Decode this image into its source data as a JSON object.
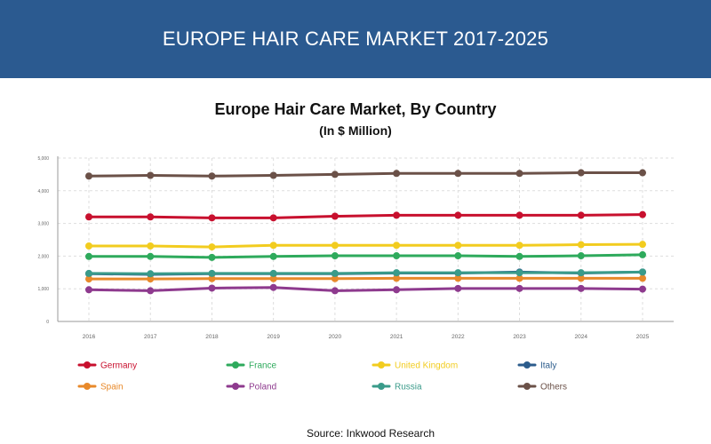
{
  "banner": {
    "title": "EUROPE HAIR CARE MARKET 2017-2025"
  },
  "source": "Source: Inkwood Research",
  "chart_data": {
    "type": "line",
    "title": "Europe Hair Care Market, By Country",
    "subtitle": "(In $ Million)",
    "xlabel": "",
    "ylabel": "",
    "ylim": [
      0,
      5000
    ],
    "yticks": [
      "0",
      "1,000",
      "2,000",
      "3,000",
      "4,000",
      "5,000"
    ],
    "categories": [
      "2016",
      "2017",
      "2018",
      "2019",
      "2020",
      "2021",
      "2022",
      "2023",
      "2024",
      "2025"
    ],
    "grid": true,
    "legend": "bottom",
    "series": [
      {
        "name": "Germany",
        "color": "#c8102e",
        "values": [
          3200,
          3200,
          3170,
          3170,
          3220,
          3250,
          3250,
          3250,
          3250,
          3270
        ]
      },
      {
        "name": "France",
        "color": "#2eaa5c",
        "values": [
          1990,
          1990,
          1960,
          1990,
          2010,
          2010,
          2010,
          1990,
          2010,
          2040
        ]
      },
      {
        "name": "United Kingdom",
        "color": "#f2cc1f",
        "values": [
          2310,
          2310,
          2280,
          2330,
          2330,
          2330,
          2330,
          2330,
          2350,
          2360
        ]
      },
      {
        "name": "Italy",
        "color": "#2c5c8c",
        "values": [
          1460,
          1440,
          1460,
          1460,
          1460,
          1480,
          1480,
          1510,
          1480,
          1510
        ]
      },
      {
        "name": "Spain",
        "color": "#e8892a",
        "values": [
          1300,
          1300,
          1310,
          1310,
          1310,
          1320,
          1320,
          1320,
          1320,
          1320
        ]
      },
      {
        "name": "Poland",
        "color": "#8e3a8e",
        "values": [
          970,
          940,
          1020,
          1040,
          940,
          970,
          1010,
          1010,
          1010,
          990
        ]
      },
      {
        "name": "Russia",
        "color": "#3a9b8a",
        "values": [
          1470,
          1460,
          1470,
          1470,
          1470,
          1490,
          1490,
          1490,
          1490,
          1510
        ]
      },
      {
        "name": "Others",
        "color": "#6b5148",
        "values": [
          4450,
          4470,
          4450,
          4470,
          4500,
          4530,
          4530,
          4530,
          4550,
          4550
        ]
      }
    ]
  }
}
